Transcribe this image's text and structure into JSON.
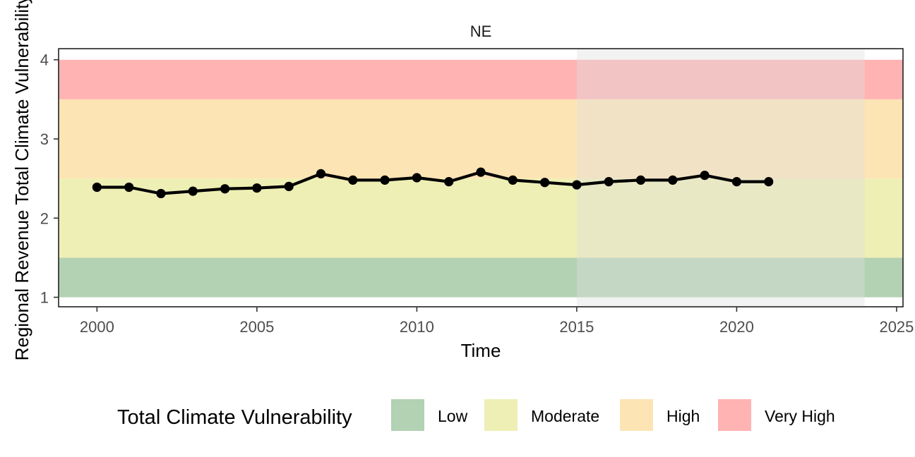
{
  "chart_data": {
    "type": "line",
    "facet": "NE",
    "xlabel": "Time",
    "ylabel": "Regional Revenue Total Climate Vulnerability",
    "xlim": [
      1998.8,
      2025.2
    ],
    "ylim": [
      0.88,
      4.14
    ],
    "xticks": [
      2000,
      2005,
      2010,
      2015,
      2020,
      2025
    ],
    "yticks": [
      1,
      2,
      3,
      4
    ],
    "shaded_x_range": [
      2015,
      2024
    ],
    "bands": [
      {
        "label": "Low",
        "ymin": 1.0,
        "ymax": 1.5,
        "color": "#b3d1b3"
      },
      {
        "label": "Moderate",
        "ymin": 1.5,
        "ymax": 2.5,
        "color": "#eeefb4"
      },
      {
        "label": "High",
        "ymin": 2.5,
        "ymax": 3.5,
        "color": "#fde4b4"
      },
      {
        "label": "Very High",
        "ymin": 3.5,
        "ymax": 4.0,
        "color": "#ffb3b3"
      }
    ],
    "series": [
      {
        "name": "NE",
        "x": [
          2000,
          2001,
          2002,
          2003,
          2004,
          2005,
          2006,
          2007,
          2008,
          2009,
          2010,
          2011,
          2012,
          2013,
          2014,
          2015,
          2016,
          2017,
          2018,
          2019,
          2020,
          2021
        ],
        "values": [
          2.39,
          2.39,
          2.31,
          2.34,
          2.37,
          2.38,
          2.4,
          2.56,
          2.48,
          2.48,
          2.51,
          2.46,
          2.58,
          2.48,
          2.45,
          2.42,
          2.46,
          2.48,
          2.48,
          2.54,
          2.46,
          2.46
        ]
      }
    ],
    "legend": {
      "title": "Total Climate Vulnerability",
      "position": "bottom",
      "items": [
        "Low",
        "Moderate",
        "High",
        "Very High"
      ]
    }
  }
}
